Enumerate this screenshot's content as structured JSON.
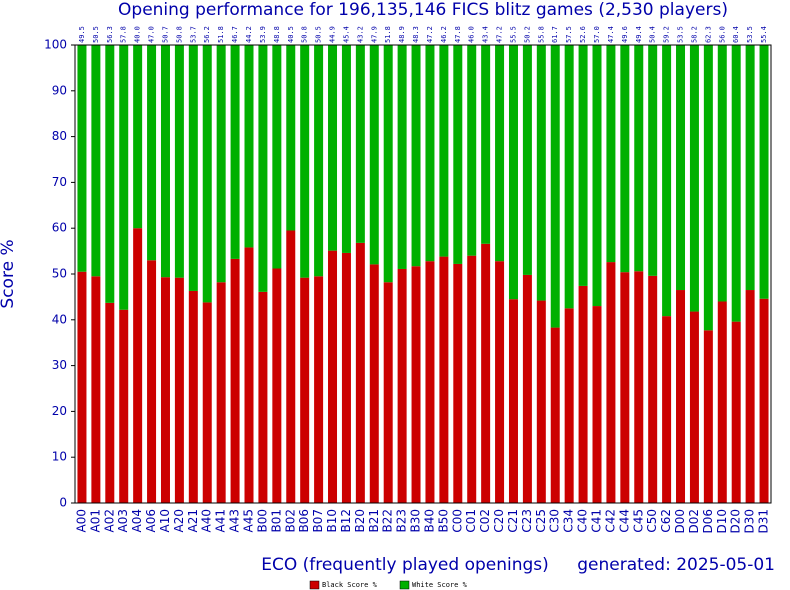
{
  "chart_data": {
    "type": "stacked_bar",
    "title": "Opening performance for 196,135,146 FICS blitz games (2,530 players)",
    "xlabel": "ECO (frequently played openings)",
    "ylabel": "Score %",
    "annotation": "generated: 2025-05-01",
    "categories": [
      "A00",
      "A01",
      "A02",
      "A03",
      "A04",
      "A06",
      "A10",
      "A20",
      "A21",
      "A40",
      "A41",
      "A43",
      "A45",
      "B00",
      "B01",
      "B02",
      "B06",
      "B07",
      "B10",
      "B12",
      "B20",
      "B21",
      "B22",
      "B23",
      "B30",
      "B40",
      "B50",
      "C00",
      "C01",
      "C02",
      "C20",
      "C21",
      "C23",
      "C25",
      "C30",
      "C34",
      "C40",
      "C41",
      "C42",
      "C44",
      "C45",
      "C50",
      "C62",
      "D00",
      "D02",
      "D06",
      "D10",
      "D20",
      "D30",
      "D31"
    ],
    "series": [
      {
        "name": "Black Score %",
        "color": "#cc0000",
        "values": [
          50.5,
          49.5,
          43.7,
          42.2,
          60.0,
          53.0,
          49.3,
          49.2,
          46.3,
          43.8,
          48.2,
          53.3,
          55.8,
          46.1,
          51.2,
          59.5,
          49.2,
          49.5,
          55.1,
          54.6,
          56.8,
          52.1,
          48.2,
          51.1,
          51.7,
          52.8,
          53.8,
          52.2,
          54.0,
          56.6,
          52.8,
          44.5,
          49.8,
          44.2,
          38.3,
          42.5,
          47.4,
          43.0,
          52.6,
          50.4,
          50.6,
          49.6,
          40.8,
          46.5,
          41.8,
          37.7,
          44.0,
          39.6,
          46.5,
          44.6
        ],
        "value_labels": [
          "50.5",
          "49.5",
          "43.7",
          "42.2",
          "60.0",
          "53.0",
          "49.3",
          "49.2",
          "46.3",
          "43.8",
          "48.2",
          "53.3",
          "55.8",
          "46.1",
          "51.2",
          "59.5",
          "49.2",
          "49.5",
          "55.1",
          "54.6",
          "56.8",
          "52.1",
          "48.2",
          "51.1",
          "51.7",
          "52.8",
          "53.8",
          "52.2",
          "54.0",
          "56.6",
          "52.8",
          "44.5",
          "49.8",
          "44.2",
          "38.3",
          "42.5",
          "47.4",
          "43.0",
          "52.6",
          "50.4",
          "50.6",
          "49.6",
          "40.8",
          "46.5",
          "41.8",
          "37.7",
          "44.0",
          "39.6",
          "46.5",
          "44.6"
        ]
      },
      {
        "name": "White Score %",
        "color": "#00b000",
        "values": [
          49.5,
          50.5,
          56.3,
          57.8,
          40.0,
          47.0,
          50.7,
          50.8,
          53.7,
          56.2,
          51.8,
          46.7,
          44.2,
          53.9,
          48.8,
          40.5,
          50.8,
          50.5,
          44.9,
          45.4,
          43.2,
          47.9,
          51.8,
          48.9,
          48.3,
          47.2,
          46.2,
          47.8,
          46.0,
          43.4,
          47.2,
          55.5,
          50.2,
          55.8,
          61.7,
          57.5,
          52.6,
          57.0,
          47.4,
          49.6,
          49.4,
          50.4,
          59.2,
          53.5,
          58.2,
          62.3,
          56.0,
          60.4,
          53.5,
          55.4
        ],
        "value_labels": [
          "49.5",
          "50.5",
          "56.3",
          "57.8",
          "40.0",
          "47.0",
          "50.7",
          "50.8",
          "53.7",
          "56.2",
          "51.8",
          "46.7",
          "44.2",
          "53.9",
          "48.8",
          "40.5",
          "50.8",
          "50.5",
          "44.9",
          "45.4",
          "43.2",
          "47.9",
          "51.8",
          "48.9",
          "48.3",
          "47.2",
          "46.2",
          "47.8",
          "46.0",
          "43.4",
          "47.2",
          "55.5",
          "50.2",
          "55.8",
          "61.7",
          "57.5",
          "52.6",
          "57.0",
          "47.4",
          "49.6",
          "49.4",
          "50.4",
          "59.2",
          "53.5",
          "58.2",
          "62.3",
          "56.0",
          "60.4",
          "53.5",
          "55.4"
        ]
      }
    ],
    "ylim": [
      0,
      100
    ],
    "yticks": [
      0,
      10,
      20,
      30,
      40,
      50,
      60,
      70,
      80,
      90,
      100
    ],
    "grid": false,
    "legend": "bottom"
  }
}
